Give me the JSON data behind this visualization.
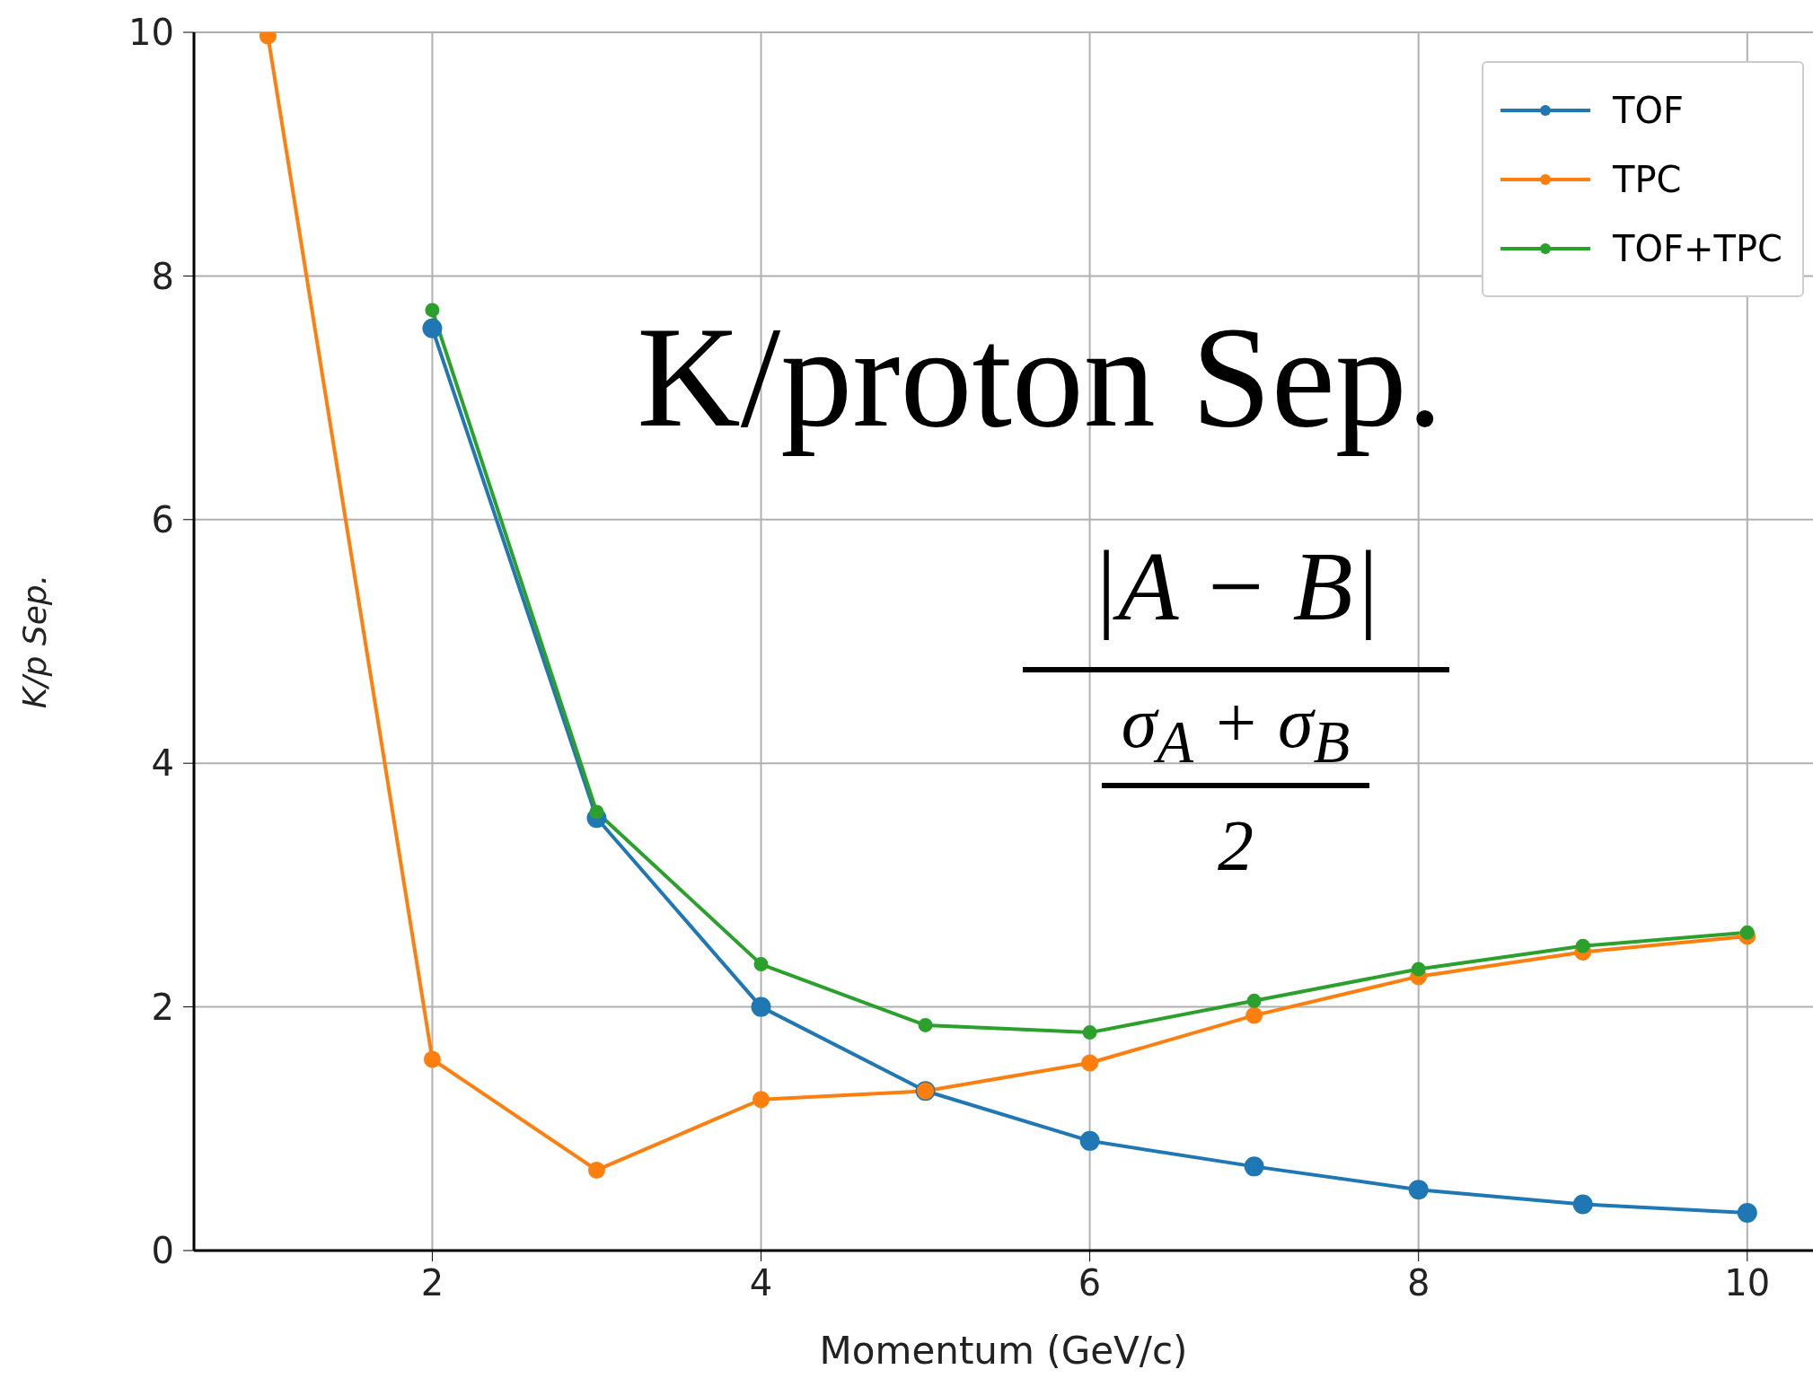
{
  "chart_data": {
    "type": "line",
    "xlabel": "Momentum (GeV/c)",
    "ylabel": "K/p Sep.",
    "x": [
      1,
      2,
      3,
      4,
      5,
      6,
      7,
      8,
      9,
      10
    ],
    "series": [
      {
        "name": "TOF",
        "color": "#1f77b4",
        "values": [
          null,
          7.57,
          3.55,
          2.0,
          1.31,
          0.9,
          0.69,
          0.5,
          0.38,
          0.31
        ]
      },
      {
        "name": "TPC",
        "color": "#ff7f0e",
        "values": [
          9.97,
          1.57,
          0.66,
          1.24,
          1.31,
          1.54,
          1.93,
          2.25,
          2.45,
          2.58
        ]
      },
      {
        "name": "TOF+TPC",
        "color": "#2ca02c",
        "values": [
          null,
          7.72,
          3.6,
          2.35,
          1.85,
          1.79,
          2.05,
          2.31,
          2.5,
          2.61
        ]
      }
    ],
    "xlim": [
      0.55,
      10.4
    ],
    "xticks": [
      2,
      4,
      6,
      8,
      10
    ],
    "ylim": [
      0,
      10
    ],
    "yticks": [
      0,
      2,
      4,
      6,
      8,
      10
    ],
    "grid": true,
    "legend": "top right",
    "marker": "circle",
    "line_style": "solid",
    "annotations": [
      "K/proton Sep.",
      "|A − B|",
      "σ$_{A}$ + σ$_{B}$",
      "2"
    ]
  }
}
